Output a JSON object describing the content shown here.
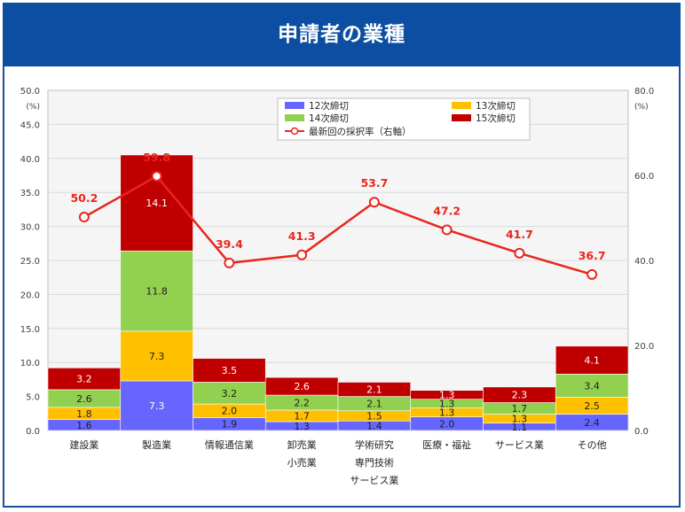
{
  "header": {
    "title": "申請者の業種"
  },
  "colors": {
    "s12": "#6666ff",
    "s13": "#ffc000",
    "s14": "#92d050",
    "s15": "#c00000",
    "line": "#e8261e",
    "banner": "#0b4ea2"
  },
  "chart_data": {
    "type": "bar",
    "stacked": true,
    "categories": [
      "建設業",
      "製造業",
      "情報通信業",
      "卸売業\n小売業",
      "学術研究\n専門技術\nサービス業",
      "医療・福祉",
      "サービス業",
      "その他"
    ],
    "series": [
      {
        "name": "12次締切",
        "values": [
          1.6,
          7.3,
          1.9,
          1.3,
          1.4,
          2.0,
          1.1,
          2.4
        ]
      },
      {
        "name": "13次締切",
        "values": [
          1.8,
          7.3,
          2.0,
          1.7,
          1.5,
          1.3,
          1.3,
          2.5
        ]
      },
      {
        "name": "14次締切",
        "values": [
          2.6,
          11.8,
          3.2,
          2.2,
          2.1,
          1.3,
          1.7,
          3.4
        ]
      },
      {
        "name": "15次締切",
        "values": [
          3.2,
          14.1,
          3.5,
          2.6,
          2.1,
          1.3,
          2.3,
          4.1
        ]
      }
    ],
    "line_series": {
      "name": "最新回の採択率（右軸）",
      "values": [
        50.2,
        59.8,
        39.4,
        41.3,
        53.7,
        47.2,
        41.7,
        36.7
      ]
    },
    "y_left": {
      "unit": "(%)",
      "min": 0,
      "max": 50,
      "ticks": [
        "0.0",
        "5.0",
        "10.0",
        "15.0",
        "20.0",
        "25.0",
        "30.0",
        "35.0",
        "40.0",
        "45.0",
        "50.0"
      ]
    },
    "y_right": {
      "unit": "(%)",
      "min": 0,
      "max": 80,
      "ticks": [
        "0.0",
        "20.0",
        "40.0",
        "60.0",
        "80.0"
      ]
    },
    "grid": true,
    "legend": "top-center"
  }
}
